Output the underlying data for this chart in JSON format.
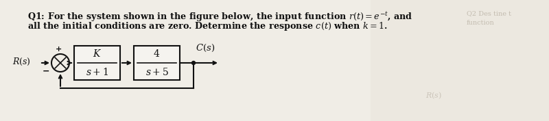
{
  "bg_color": "#e8e4dc",
  "content_bg": "#f0eeea",
  "text_color": "#1a1a1a",
  "title_line1": "Q1: For the system shown in the figure below, the input function $r(t) = e^{-t}$, and",
  "title_line2": "all the initial conditions are zero. Determine the response $c(t)$ when $k = 1$.",
  "block1_top": "$K$",
  "block1_bot": "$s+1$",
  "block2_top": "$4$",
  "block2_bot": "$s+5$",
  "label_input": "$R(s)$",
  "label_output": "$C(s)$",
  "fig_width": 8.0,
  "fig_height": 1.77,
  "dpi": 100,
  "line_color": "#111111",
  "block_face": "#f5f3ef"
}
